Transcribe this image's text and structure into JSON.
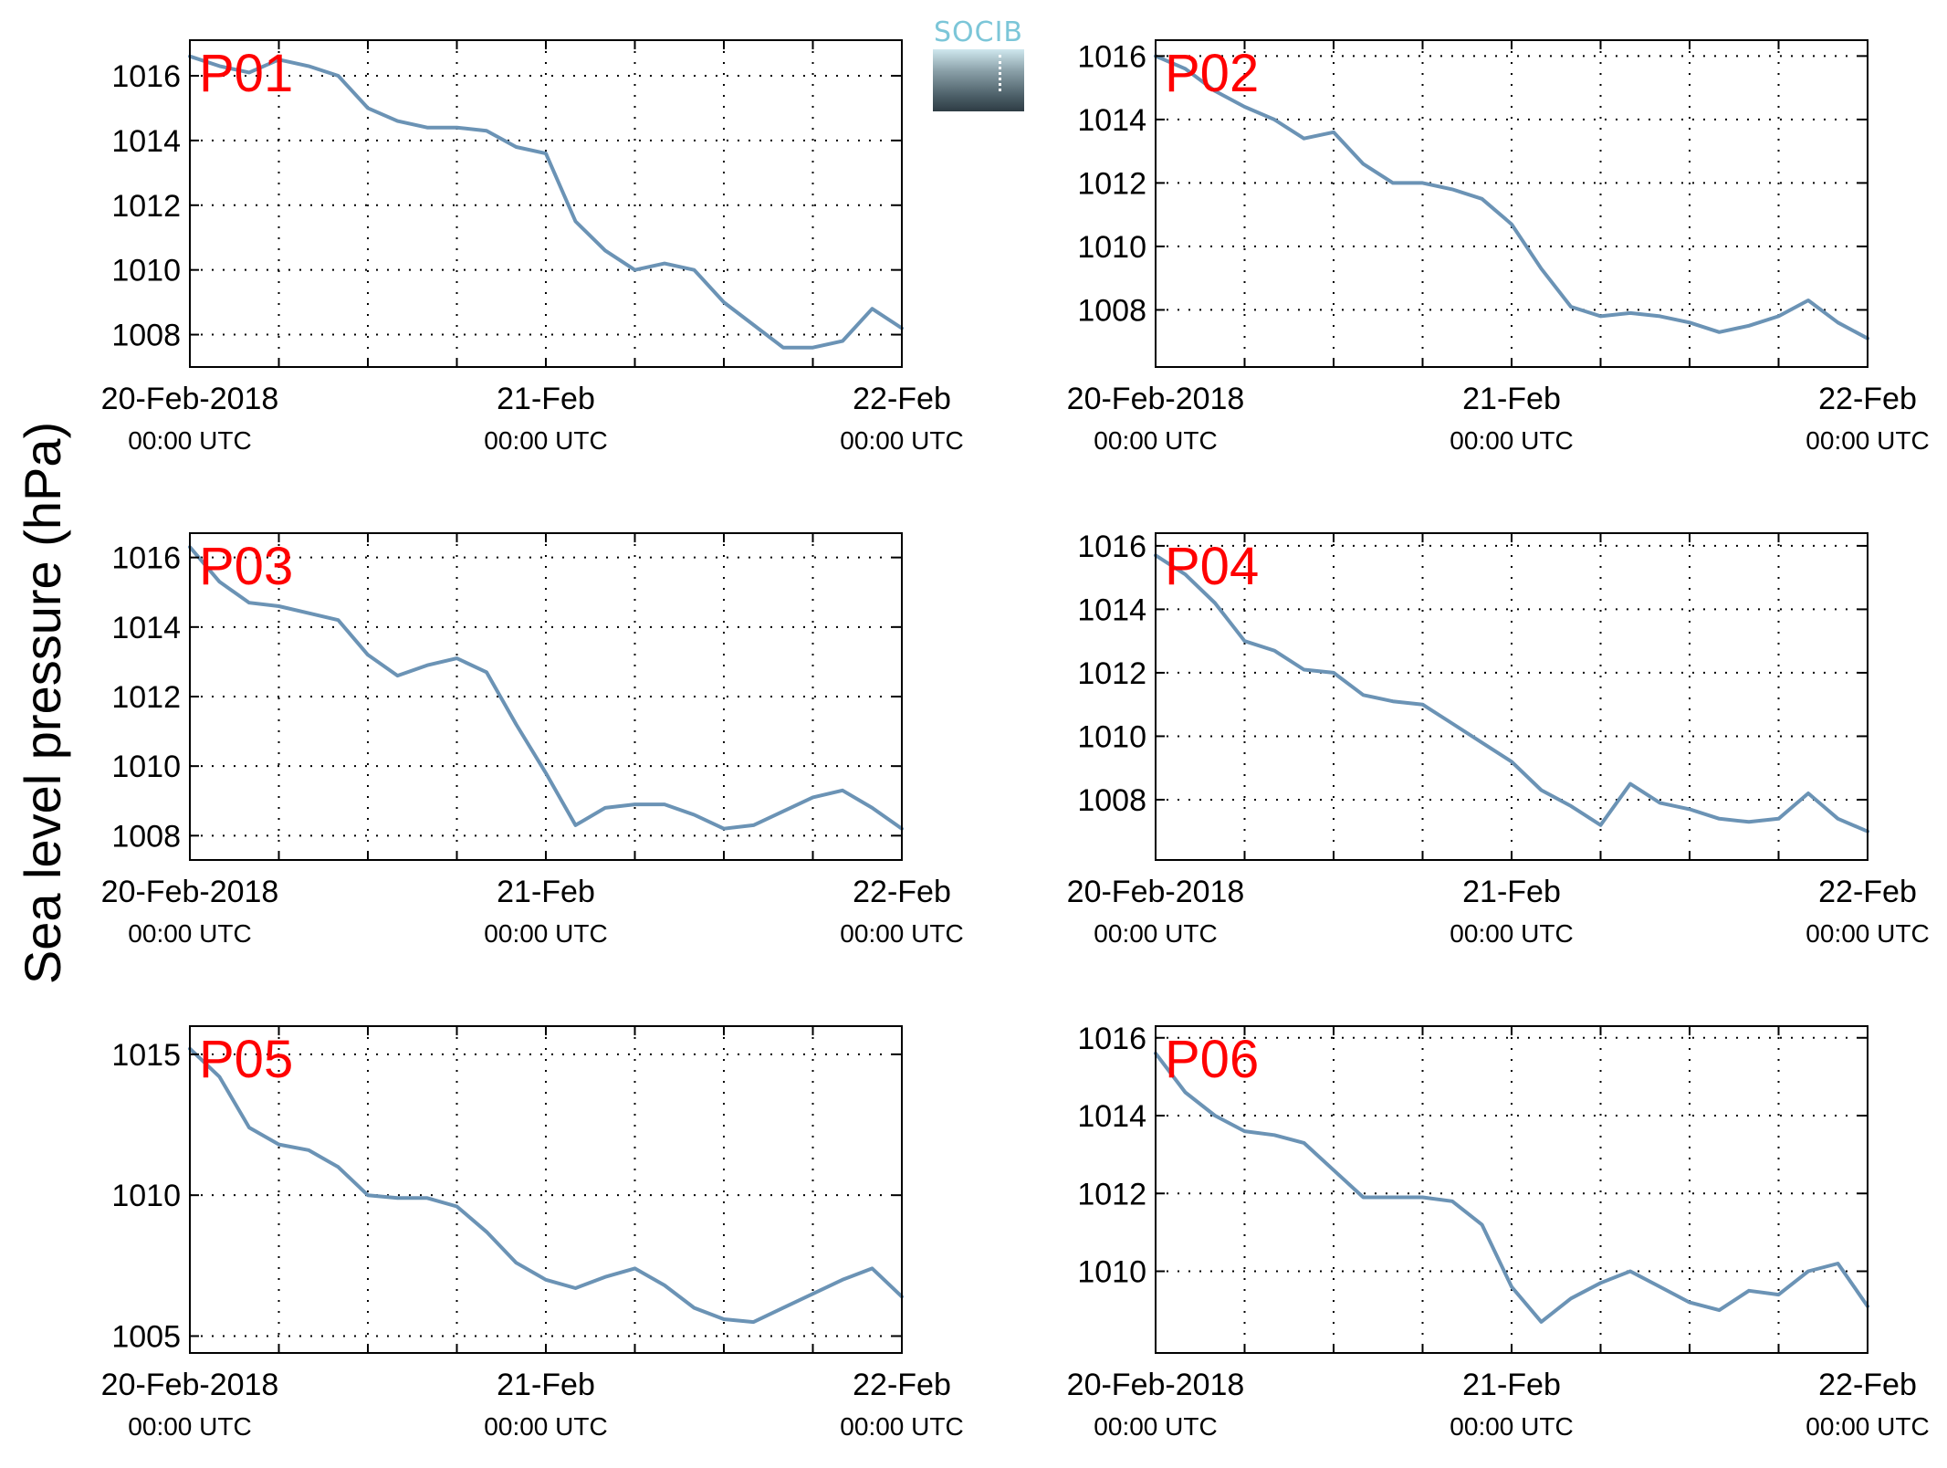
{
  "ylabel": "Sea level pressure (hPa)",
  "logo": {
    "text": "SOCIB"
  },
  "colors": {
    "line": "#6b93b5",
    "panel_label": "#ff0000",
    "grid": "#000000"
  },
  "chart_data": [
    {
      "type": "line",
      "panel": "P01",
      "x_ticks": [
        "20-Feb-2018",
        "21-Feb",
        "22-Feb"
      ],
      "x_tick_times": [
        "00:00 UTC",
        "00:00 UTC",
        "00:00 UTC"
      ],
      "x_range": [
        "2018-02-20 00:00",
        "2018-02-22 00:00"
      ],
      "y_ticks": [
        1008,
        1010,
        1012,
        1014,
        1016
      ],
      "ylim": [
        1007,
        1017.1
      ],
      "grid": true,
      "x_hours": [
        0,
        2,
        4,
        6,
        8,
        10,
        12,
        14,
        16,
        18,
        20,
        22,
        24,
        26,
        28,
        30,
        32,
        34,
        36,
        38,
        40,
        42,
        44,
        46,
        48
      ],
      "values": [
        1016.6,
        1016.3,
        1016.1,
        1016.5,
        1016.3,
        1016.0,
        1015.0,
        1014.6,
        1014.4,
        1014.4,
        1014.3,
        1013.8,
        1013.6,
        1011.5,
        1010.6,
        1010.0,
        1010.2,
        1010.0,
        1009.0,
        1008.3,
        1007.6,
        1007.6,
        1007.8,
        1008.8,
        1008.2
      ]
    },
    {
      "type": "line",
      "panel": "P02",
      "x_ticks": [
        "20-Feb-2018",
        "21-Feb",
        "22-Feb"
      ],
      "x_tick_times": [
        "00:00 UTC",
        "00:00 UTC",
        "00:00 UTC"
      ],
      "x_range": [
        "2018-02-20 00:00",
        "2018-02-22 00:00"
      ],
      "y_ticks": [
        1008,
        1010,
        1012,
        1014,
        1016
      ],
      "ylim": [
        1006.2,
        1016.5
      ],
      "grid": true,
      "x_hours": [
        0,
        2,
        4,
        6,
        8,
        10,
        12,
        14,
        16,
        18,
        20,
        22,
        24,
        26,
        28,
        30,
        32,
        34,
        36,
        38,
        40,
        42,
        44,
        46,
        48
      ],
      "values": [
        1016.0,
        1015.6,
        1014.9,
        1014.4,
        1014.0,
        1013.4,
        1013.6,
        1012.6,
        1012.0,
        1012.0,
        1011.8,
        1011.5,
        1010.7,
        1009.3,
        1008.1,
        1007.8,
        1007.9,
        1007.8,
        1007.6,
        1007.3,
        1007.5,
        1007.8,
        1008.3,
        1007.6,
        1007.1
      ]
    },
    {
      "type": "line",
      "panel": "P03",
      "x_ticks": [
        "20-Feb-2018",
        "21-Feb",
        "22-Feb"
      ],
      "x_tick_times": [
        "00:00 UTC",
        "00:00 UTC",
        "00:00 UTC"
      ],
      "x_range": [
        "2018-02-20 00:00",
        "2018-02-22 00:00"
      ],
      "y_ticks": [
        1008,
        1010,
        1012,
        1014,
        1016
      ],
      "ylim": [
        1007.3,
        1016.7
      ],
      "grid": true,
      "x_hours": [
        0,
        2,
        4,
        6,
        8,
        10,
        12,
        14,
        16,
        18,
        20,
        22,
        24,
        26,
        28,
        30,
        32,
        34,
        36,
        38,
        40,
        42,
        44,
        46,
        48
      ],
      "values": [
        1016.3,
        1015.3,
        1014.7,
        1014.6,
        1014.4,
        1014.2,
        1013.2,
        1012.6,
        1012.9,
        1013.1,
        1012.7,
        1011.2,
        1009.8,
        1008.3,
        1008.8,
        1008.9,
        1008.9,
        1008.6,
        1008.2,
        1008.3,
        1008.7,
        1009.1,
        1009.3,
        1008.8,
        1008.2
      ]
    },
    {
      "type": "line",
      "panel": "P04",
      "x_ticks": [
        "20-Feb-2018",
        "21-Feb",
        "22-Feb"
      ],
      "x_tick_times": [
        "00:00 UTC",
        "00:00 UTC",
        "00:00 UTC"
      ],
      "x_range": [
        "2018-02-20 00:00",
        "2018-02-22 00:00"
      ],
      "y_ticks": [
        1008,
        1010,
        1012,
        1014,
        1016
      ],
      "ylim": [
        1006.1,
        1016.4
      ],
      "grid": true,
      "x_hours": [
        0,
        2,
        4,
        6,
        8,
        10,
        12,
        14,
        16,
        18,
        20,
        22,
        24,
        26,
        28,
        30,
        32,
        34,
        36,
        38,
        40,
        42,
        44,
        46,
        48
      ],
      "values": [
        1015.7,
        1015.1,
        1014.2,
        1013.0,
        1012.7,
        1012.1,
        1012.0,
        1011.3,
        1011.1,
        1011.0,
        1010.4,
        1009.8,
        1009.2,
        1008.3,
        1007.8,
        1007.2,
        1008.5,
        1007.9,
        1007.7,
        1007.4,
        1007.3,
        1007.4,
        1008.2,
        1007.4,
        1007.0
      ]
    },
    {
      "type": "line",
      "panel": "P05",
      "x_ticks": [
        "20-Feb-2018",
        "21-Feb",
        "22-Feb"
      ],
      "x_tick_times": [
        "00:00 UTC",
        "00:00 UTC",
        "00:00 UTC"
      ],
      "x_range": [
        "2018-02-20 00:00",
        "2018-02-22 00:00"
      ],
      "y_ticks": [
        1005,
        1010,
        1015
      ],
      "ylim": [
        1004.4,
        1016.0
      ],
      "grid": true,
      "x_hours": [
        0,
        2,
        4,
        6,
        8,
        10,
        12,
        14,
        16,
        18,
        20,
        22,
        24,
        26,
        28,
        30,
        32,
        34,
        36,
        38,
        40,
        42,
        44,
        46,
        48
      ],
      "values": [
        1015.2,
        1014.2,
        1012.4,
        1011.8,
        1011.6,
        1011.0,
        1010.0,
        1009.9,
        1009.9,
        1009.6,
        1008.7,
        1007.6,
        1007.0,
        1006.7,
        1007.1,
        1007.4,
        1006.8,
        1006.0,
        1005.6,
        1005.5,
        1006.0,
        1006.5,
        1007.0,
        1007.4,
        1006.4
      ]
    },
    {
      "type": "line",
      "panel": "P06",
      "x_ticks": [
        "20-Feb-2018",
        "21-Feb",
        "22-Feb"
      ],
      "x_tick_times": [
        "00:00 UTC",
        "00:00 UTC",
        "00:00 UTC"
      ],
      "x_range": [
        "2018-02-20 00:00",
        "2018-02-22 00:00"
      ],
      "y_ticks": [
        1010,
        1012,
        1014,
        1016
      ],
      "ylim": [
        1007.9,
        1016.3
      ],
      "grid": true,
      "x_hours": [
        0,
        2,
        4,
        6,
        8,
        10,
        12,
        14,
        16,
        18,
        20,
        22,
        24,
        26,
        28,
        30,
        32,
        34,
        36,
        38,
        40,
        42,
        44,
        46,
        48
      ],
      "values": [
        1015.6,
        1014.6,
        1014.0,
        1013.6,
        1013.5,
        1013.3,
        1012.6,
        1011.9,
        1011.9,
        1011.9,
        1011.8,
        1011.2,
        1009.6,
        1008.7,
        1009.3,
        1009.7,
        1010.0,
        1009.6,
        1009.2,
        1009.0,
        1009.5,
        1009.4,
        1010.0,
        1010.2,
        1009.1
      ]
    }
  ]
}
